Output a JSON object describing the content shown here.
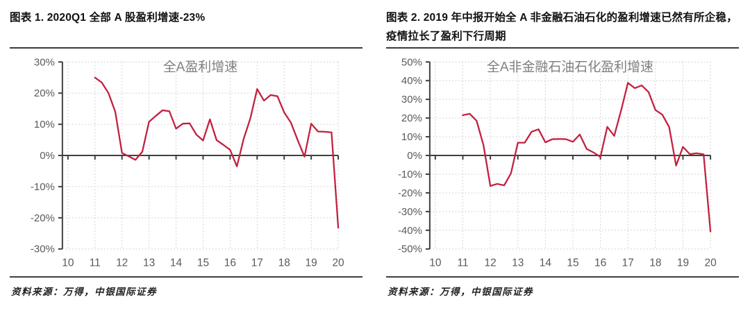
{
  "colors": {
    "line": "#c2203e",
    "axis": "#3f3f3f",
    "grid": "#c9c9c9",
    "tick_label": "#595959",
    "chart_title": "#7f7f7f",
    "heading_text": "#111111",
    "rule": "#3a3a3a"
  },
  "figures": [
    {
      "heading": "图表 1. 2020Q1 全部 A 股盈利增速-23%",
      "source": "资料来源：万得，中银国际证券",
      "chart_data": {
        "type": "line",
        "title": "全A盈利增速",
        "xlim": [
          10,
          20
        ],
        "ylim": [
          -30,
          30
        ],
        "grid": "dotted",
        "legend_position": "none",
        "x_ticks": [
          10,
          11,
          12,
          13,
          14,
          15,
          16,
          17,
          18,
          19,
          20
        ],
        "y_ticks": [
          30,
          20,
          10,
          0,
          -10,
          -20,
          -30
        ],
        "y_tick_suffix": "%",
        "series": [
          {
            "name": "全A盈利增速",
            "x": [
              11.0,
              11.25,
              11.5,
              11.75,
              12.0,
              12.25,
              12.5,
              12.75,
              13.0,
              13.25,
              13.5,
              13.75,
              14.0,
              14.25,
              14.5,
              14.75,
              15.0,
              15.25,
              15.5,
              15.75,
              16.0,
              16.25,
              16.5,
              16.75,
              17.0,
              17.25,
              17.5,
              17.75,
              18.0,
              18.25,
              18.5,
              18.75,
              19.0,
              19.25,
              19.5,
              19.75,
              20.0
            ],
            "values": [
              25.0,
              23.4,
              20.0,
              14.0,
              0.8,
              -0.3,
              -1.4,
              1.2,
              10.8,
              12.7,
              14.5,
              14.2,
              8.6,
              10.2,
              10.3,
              6.7,
              4.8,
              11.6,
              4.9,
              3.4,
              1.8,
              -3.5,
              5.3,
              12.0,
              21.3,
              17.6,
              19.4,
              19.0,
              13.8,
              10.5,
              4.9,
              -0.4,
              10.2,
              7.7,
              7.6,
              7.4,
              -23.2
            ]
          }
        ]
      }
    },
    {
      "heading": "图表 2. 2019 年中报开始全 A 非金融石油石化的盈利增速已然有所企稳，疫情拉长了盈利下行周期",
      "source": "资料来源：万得，中银国际证券",
      "chart_data": {
        "type": "line",
        "title": "全A非金融石油石化盈利增速",
        "xlim": [
          10,
          20
        ],
        "ylim": [
          -50,
          50
        ],
        "grid": "dotted",
        "legend_position": "none",
        "x_ticks": [
          10,
          11,
          12,
          13,
          14,
          15,
          16,
          17,
          18,
          19,
          20
        ],
        "y_ticks": [
          50,
          40,
          30,
          20,
          10,
          0,
          -10,
          -20,
          -30,
          -40,
          -50
        ],
        "y_tick_suffix": "%",
        "series": [
          {
            "name": "全A非金融石油石化盈利增速",
            "x": [
              11.0,
              11.25,
              11.5,
              11.75,
              12.0,
              12.25,
              12.5,
              12.75,
              13.0,
              13.25,
              13.5,
              13.75,
              14.0,
              14.25,
              14.5,
              14.75,
              15.0,
              15.25,
              15.5,
              15.75,
              16.0,
              16.25,
              16.5,
              16.75,
              17.0,
              17.25,
              17.5,
              17.75,
              18.0,
              18.25,
              18.5,
              18.75,
              19.0,
              19.25,
              19.5,
              19.75,
              20.0
            ],
            "values": [
              21.5,
              22.3,
              18.5,
              5.5,
              -16.3,
              -15.2,
              -16.0,
              -9.5,
              6.8,
              6.8,
              12.7,
              14.0,
              7.0,
              8.7,
              8.8,
              8.7,
              7.3,
              11.2,
              3.5,
              1.6,
              -0.8,
              15.3,
              10.5,
              24.0,
              38.8,
              36.0,
              37.5,
              33.9,
              24.3,
              21.8,
              15.2,
              -5.4,
              4.6,
              0.7,
              1.2,
              0.6,
              -40.7
            ]
          }
        ]
      }
    }
  ]
}
